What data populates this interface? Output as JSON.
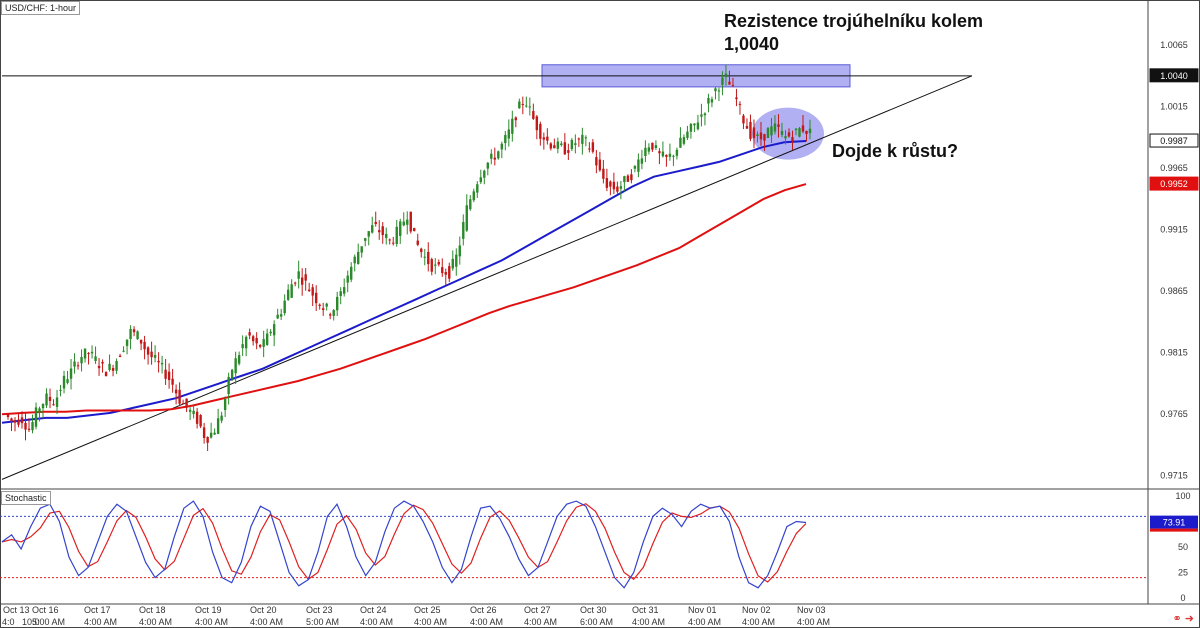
{
  "symbol": "USD/CHF: 1-hour",
  "indicator": "Stochastic",
  "annotations": {
    "resistance_line1": "Rezistence trojúhelníku kolem",
    "resistance_line2": "1,0040",
    "question": "Dojde k růstu?"
  },
  "colors": {
    "up": "#2a8a2a",
    "down": "#c21818",
    "ma_fast": "#1b1bcc",
    "ma_slow": "#e01010",
    "zone": "#7b7bea",
    "stoch_k": "#3344cc",
    "stoch_d": "#e02020"
  },
  "icons": [
    "link-icon",
    "arrow-icon"
  ],
  "chart_data": {
    "type": "candlestick",
    "ylim": [
      0.9705,
      1.01
    ],
    "y_ticks": [
      "1.0065",
      "1.0015",
      "0.9965",
      "0.9915",
      "0.9865",
      "0.9815",
      "0.9765",
      "0.9715"
    ],
    "price_labels": [
      {
        "value": "1.0040",
        "y": 1.004,
        "style": "dark"
      },
      {
        "value": "0.9987",
        "y": 0.9987,
        "style": "outline"
      },
      {
        "value": "0.9952",
        "y": 0.9952,
        "style": "red"
      }
    ],
    "x_ticks_top": [
      "Oct 13",
      "Oct 16",
      "Oct 17",
      "Oct 18",
      "Oct 19",
      "Oct 20",
      "Oct 23",
      "Oct 24",
      "Oct 25",
      "Oct 26",
      "Oct 27",
      "Oct 30",
      "Oct 31",
      "Nov 01",
      "Nov 02",
      "Nov 03"
    ],
    "x_ticks_bottom": [
      "4:0",
      "10:0",
      "5:00 AM",
      "4:00 AM",
      "4:00 AM",
      "4:00 AM",
      "4:00 AM",
      "5:00 AM",
      "4:00 AM",
      "4:00 AM",
      "4:00 AM",
      "4:00 AM",
      "6:00 AM",
      "4:00 AM",
      "4:00 AM",
      "4:00 AM",
      "4:00 AM"
    ],
    "price_path": [
      0.9765,
      0.9758,
      0.9762,
      0.9752,
      0.977,
      0.9778,
      0.9775,
      0.9792,
      0.98,
      0.9812,
      0.9815,
      0.9808,
      0.98,
      0.9805,
      0.9818,
      0.9832,
      0.9828,
      0.9815,
      0.9808,
      0.98,
      0.979,
      0.9775,
      0.9768,
      0.976,
      0.9745,
      0.9752,
      0.9768,
      0.98,
      0.9815,
      0.983,
      0.982,
      0.9822,
      0.9838,
      0.985,
      0.9868,
      0.988,
      0.987,
      0.986,
      0.9852,
      0.9848,
      0.9862,
      0.988,
      0.9895,
      0.991,
      0.9918,
      0.9912,
      0.9905,
      0.9915,
      0.9928,
      0.9905,
      0.9893,
      0.9885,
      0.9882,
      0.988,
      0.9895,
      0.993,
      0.995,
      0.9965,
      0.9972,
      0.998,
      0.9992,
      1.001,
      1.0022,
      1.0005,
      0.9992,
      0.9985,
      0.9982,
      0.998,
      0.9986,
      0.9988,
      0.998,
      0.996,
      0.995,
      0.9948,
      0.9955,
      0.9962,
      0.9978,
      0.9986,
      0.9975,
      0.9972,
      0.998,
      0.999,
      0.9998,
      1.0008,
      1.002,
      1.0032,
      1.0038,
      1.0025,
      1.0005,
      0.9992,
      0.9988,
      0.9995,
      0.9998,
      0.999,
      0.9992,
      0.9998,
      0.9994
    ],
    "series": [
      {
        "name": "",
        "type": "ma",
        "color": "ma_fast",
        "values": [
          0.9758,
          0.976,
          0.9762,
          0.9762,
          0.9764,
          0.9766,
          0.977,
          0.9774,
          0.9778,
          0.9784,
          0.979,
          0.9796,
          0.9802,
          0.981,
          0.9818,
          0.9826,
          0.9834,
          0.9842,
          0.985,
          0.9858,
          0.9866,
          0.9874,
          0.9882,
          0.989,
          0.99,
          0.991,
          0.992,
          0.993,
          0.994,
          0.995,
          0.9958,
          0.9962,
          0.9966,
          0.997,
          0.9976,
          0.9982,
          0.9986,
          0.9987
        ]
      },
      {
        "name": "",
        "type": "ma",
        "color": "ma_slow",
        "values": [
          0.9765,
          0.9766,
          0.9767,
          0.9767,
          0.9768,
          0.9768,
          0.9768,
          0.9768,
          0.9769,
          0.9772,
          0.9776,
          0.978,
          0.9784,
          0.9788,
          0.9792,
          0.9797,
          0.9802,
          0.9808,
          0.9814,
          0.982,
          0.9826,
          0.9833,
          0.984,
          0.9847,
          0.9853,
          0.9858,
          0.9863,
          0.9868,
          0.9874,
          0.988,
          0.9886,
          0.9893,
          0.99,
          0.991,
          0.992,
          0.993,
          0.994,
          0.9947,
          0.9952
        ]
      }
    ],
    "trendlines": [
      {
        "from": [
          0,
          0.9712
        ],
        "to": [
          1.0,
          1.004
        ]
      },
      {
        "from": [
          0,
          1.004
        ],
        "to": [
          1.0,
          1.004
        ]
      }
    ],
    "resistance_zone": [
      1.0031,
      1.0049
    ],
    "stochastic": {
      "ylim": [
        0,
        100
      ],
      "y_ticks": [
        "100",
        "75",
        "50",
        "25",
        "0"
      ],
      "levels": [
        80,
        20
      ],
      "current": "73.91",
      "k": [
        55,
        62,
        48,
        70,
        88,
        92,
        75,
        40,
        22,
        30,
        55,
        80,
        92,
        85,
        60,
        35,
        20,
        28,
        60,
        88,
        95,
        80,
        45,
        20,
        15,
        35,
        70,
        90,
        85,
        55,
        25,
        12,
        18,
        45,
        80,
        92,
        70,
        40,
        22,
        35,
        65,
        88,
        95,
        90,
        75,
        55,
        30,
        15,
        28,
        60,
        88,
        90,
        78,
        60,
        38,
        22,
        30,
        55,
        80,
        92,
        95,
        90,
        70,
        45,
        20,
        10,
        25,
        55,
        80,
        88,
        82,
        70,
        85,
        92,
        88,
        90,
        75,
        40,
        15,
        10,
        22,
        45,
        70,
        75,
        74
      ]
    }
  }
}
